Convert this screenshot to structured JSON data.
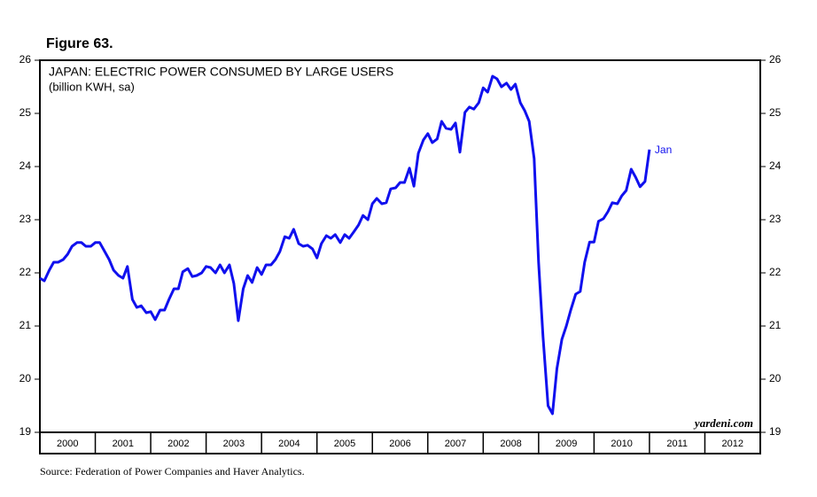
{
  "figure_label": "Figure 63.",
  "source": "Source: Federation of Power Companies and Haver Analytics.",
  "chart_data": {
    "type": "line",
    "title": "JAPAN: ELECTRIC POWER CONSUMED BY LARGE USERS",
    "subtitle": "(billion KWH, sa)",
    "watermark": "yardeni.com",
    "annotation": "Jan",
    "x": [
      2000.0,
      2000.08,
      2000.17,
      2000.25,
      2000.33,
      2000.42,
      2000.5,
      2000.58,
      2000.67,
      2000.75,
      2000.83,
      2000.92,
      2001.0,
      2001.08,
      2001.17,
      2001.25,
      2001.33,
      2001.42,
      2001.5,
      2001.58,
      2001.67,
      2001.75,
      2001.83,
      2001.92,
      2002.0,
      2002.08,
      2002.17,
      2002.25,
      2002.33,
      2002.42,
      2002.5,
      2002.58,
      2002.67,
      2002.75,
      2002.83,
      2002.92,
      2003.0,
      2003.08,
      2003.17,
      2003.25,
      2003.33,
      2003.42,
      2003.5,
      2003.58,
      2003.67,
      2003.75,
      2003.83,
      2003.92,
      2004.0,
      2004.08,
      2004.17,
      2004.25,
      2004.33,
      2004.42,
      2004.5,
      2004.58,
      2004.67,
      2004.75,
      2004.83,
      2004.92,
      2005.0,
      2005.08,
      2005.17,
      2005.25,
      2005.33,
      2005.42,
      2005.5,
      2005.58,
      2005.67,
      2005.75,
      2005.83,
      2005.92,
      2006.0,
      2006.08,
      2006.17,
      2006.25,
      2006.33,
      2006.42,
      2006.5,
      2006.58,
      2006.67,
      2006.75,
      2006.83,
      2006.92,
      2007.0,
      2007.08,
      2007.17,
      2007.25,
      2007.33,
      2007.42,
      2007.5,
      2007.58,
      2007.67,
      2007.75,
      2007.83,
      2007.92,
      2008.0,
      2008.08,
      2008.17,
      2008.25,
      2008.33,
      2008.42,
      2008.5,
      2008.58,
      2008.67,
      2008.75,
      2008.83,
      2008.92,
      2009.0,
      2009.08,
      2009.17,
      2009.25,
      2009.33,
      2009.42,
      2009.5,
      2009.58,
      2009.67,
      2009.75,
      2009.83,
      2009.92,
      2010.0,
      2010.08,
      2010.17,
      2010.25,
      2010.33,
      2010.42,
      2010.5,
      2010.58,
      2010.67,
      2010.75,
      2010.83,
      2010.92,
      2011.0
    ],
    "series": [
      {
        "name": "Electric power consumed by large users",
        "color": "#1010ee",
        "values": [
          21.9,
          21.85,
          22.05,
          22.2,
          22.2,
          22.25,
          22.35,
          22.5,
          22.57,
          22.57,
          22.5,
          22.5,
          22.57,
          22.57,
          22.4,
          22.25,
          22.05,
          21.95,
          21.9,
          22.12,
          21.5,
          21.35,
          21.38,
          21.25,
          21.27,
          21.12,
          21.3,
          21.3,
          21.5,
          21.7,
          21.7,
          22.02,
          22.08,
          21.93,
          21.95,
          22.0,
          22.12,
          22.1,
          22.0,
          22.15,
          22.0,
          22.15,
          21.8,
          21.1,
          21.7,
          21.95,
          21.82,
          22.1,
          21.97,
          22.15,
          22.15,
          22.25,
          22.4,
          22.68,
          22.65,
          22.82,
          22.55,
          22.5,
          22.52,
          22.45,
          22.28,
          22.55,
          22.7,
          22.65,
          22.72,
          22.57,
          22.72,
          22.65,
          22.78,
          22.9,
          23.08,
          23.0,
          23.3,
          23.4,
          23.3,
          23.32,
          23.58,
          23.6,
          23.7,
          23.7,
          23.97,
          23.63,
          24.25,
          24.5,
          24.62,
          24.45,
          24.52,
          24.85,
          24.72,
          24.7,
          24.82,
          24.27,
          25.02,
          25.12,
          25.08,
          25.2,
          25.48,
          25.4,
          25.7,
          25.65,
          25.5,
          25.57,
          25.45,
          25.55,
          25.2,
          25.05,
          24.85,
          24.15,
          22.2,
          20.8,
          19.5,
          19.35,
          20.2,
          20.75,
          21.0,
          21.3,
          21.6,
          21.65,
          22.2,
          22.58,
          22.58,
          22.97,
          23.02,
          23.15,
          23.32,
          23.3,
          23.45,
          23.55,
          23.95,
          23.8,
          23.62,
          23.72,
          24.32
        ]
      }
    ],
    "xlim": [
      2000,
      2013
    ],
    "xticks": [
      2000,
      2001,
      2002,
      2003,
      2004,
      2005,
      2006,
      2007,
      2008,
      2009,
      2010,
      2011,
      2012
    ],
    "ylim": [
      19,
      26
    ],
    "yticks": [
      19,
      20,
      21,
      22,
      23,
      24,
      25,
      26
    ],
    "y2lim": [
      19,
      26
    ],
    "y2ticks": [
      19,
      20,
      21,
      22,
      23,
      24,
      25,
      26
    ]
  }
}
